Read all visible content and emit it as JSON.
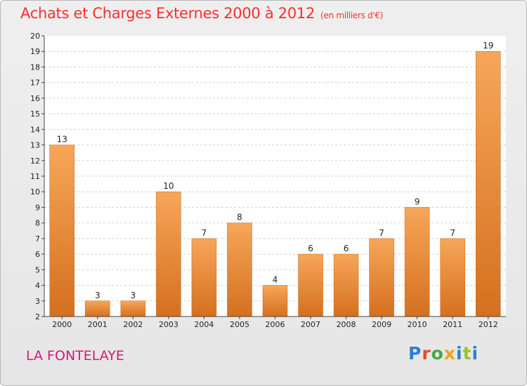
{
  "header": {
    "title": "Achats et Charges Externes 2000 à 2012",
    "unit": "(en milliers d'€)"
  },
  "footer": {
    "town": "LA FONTELAYE",
    "logo": [
      "P",
      "r",
      "o",
      "x",
      "i",
      "t",
      "i"
    ]
  },
  "colors": {
    "bar_top": "#f7a659",
    "bar_bottom": "#d4701f",
    "title": "#ff2d2d",
    "town": "#d8167d"
  },
  "chart_data": {
    "type": "bar",
    "categories": [
      "2000",
      "2001",
      "2002",
      "2003",
      "2004",
      "2005",
      "2006",
      "2007",
      "2008",
      "2009",
      "2010",
      "2011",
      "2012"
    ],
    "values": [
      13,
      3,
      3,
      10,
      7,
      8,
      4,
      6,
      6,
      7,
      9,
      7,
      19
    ],
    "title": "Achats et Charges Externes 2000 à 2012",
    "ylim": [
      2,
      20
    ],
    "yticks": [
      2,
      3,
      4,
      5,
      6,
      7,
      8,
      9,
      10,
      11,
      12,
      13,
      14,
      15,
      16,
      17,
      18,
      19,
      20
    ],
    "grid": true,
    "legend": "none"
  }
}
